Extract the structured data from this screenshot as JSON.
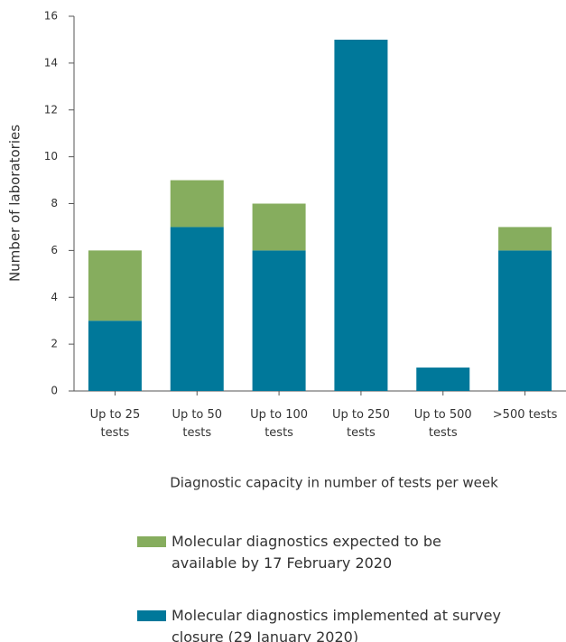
{
  "chart_data": {
    "type": "stacked_bar",
    "y_label": "Number of laboratories",
    "x_label": "Diagnostic capacity in number of tests per week",
    "categories": [
      "Up to 25 tests",
      "Up to 50 tests",
      "Up to 100 tests",
      "Up to 250 tests",
      "Up to 500 tests",
      ">500 tests"
    ],
    "series": [
      {
        "name": "Molecular diagnostics expected to be available by 17 February 2020",
        "color": "#86ad5e",
        "values": [
          3,
          2,
          2,
          0,
          0,
          1
        ]
      },
      {
        "name": "Molecular diagnostics implemented at survey closure (29 January 2020)",
        "color": "#00789a",
        "values": [
          3,
          7,
          6,
          15,
          1,
          6
        ]
      }
    ],
    "ylim": [
      0,
      16
    ],
    "yticks": [
      0,
      2,
      4,
      6,
      8,
      10,
      12,
      14,
      16
    ]
  }
}
